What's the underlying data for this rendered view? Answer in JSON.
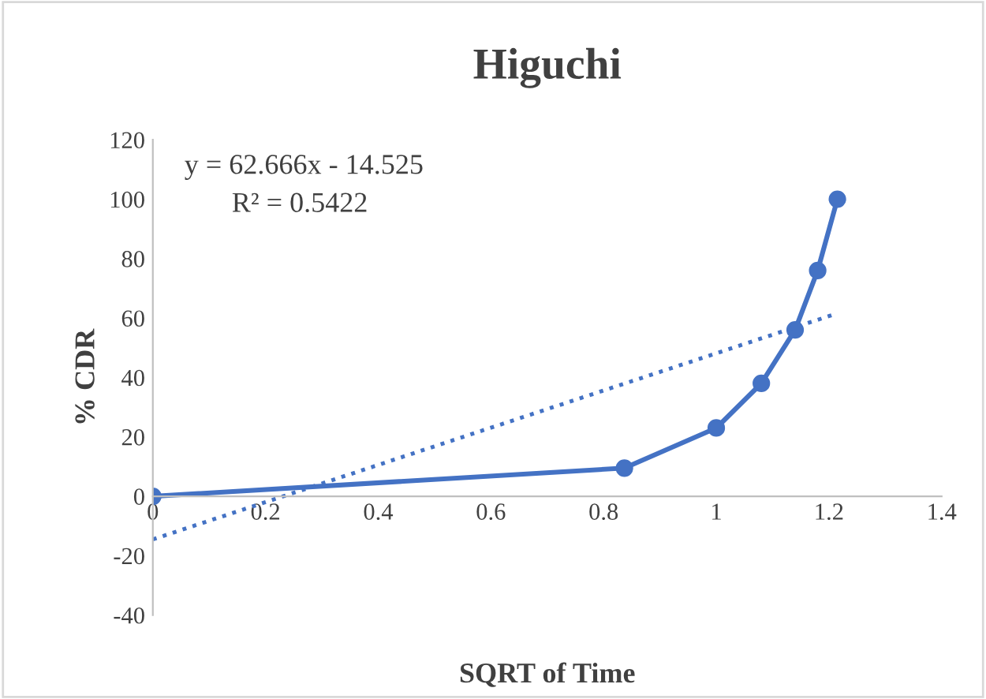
{
  "chart_data": {
    "type": "line",
    "title": "Higuchi",
    "xlabel": "SQRT of Time",
    "ylabel": "% CDR",
    "xlim": [
      0,
      1.4
    ],
    "xticks": [
      0,
      0.2,
      0.4,
      0.6,
      0.8,
      1,
      1.2,
      1.4
    ],
    "ylim": [
      -40,
      120
    ],
    "yticks": [
      -40,
      -20,
      0,
      20,
      40,
      60,
      80,
      100,
      120
    ],
    "grid": false,
    "legend": false,
    "annotations": [
      "y = 62.666x - 14.525",
      "R² = 0.5422"
    ],
    "series": [
      {
        "color": "#4472c4",
        "marker": "circle",
        "line_style": "solid",
        "x": [
          0,
          0.837,
          1.0,
          1.08,
          1.14,
          1.18,
          1.215
        ],
        "values": [
          0,
          9.5,
          23,
          38,
          56,
          76,
          100
        ]
      },
      {
        "color": "#4472c4",
        "marker": "none",
        "line_style": "dotted",
        "x": [
          0,
          1.215
        ],
        "values": [
          -14.5,
          61.6
        ]
      }
    ]
  }
}
